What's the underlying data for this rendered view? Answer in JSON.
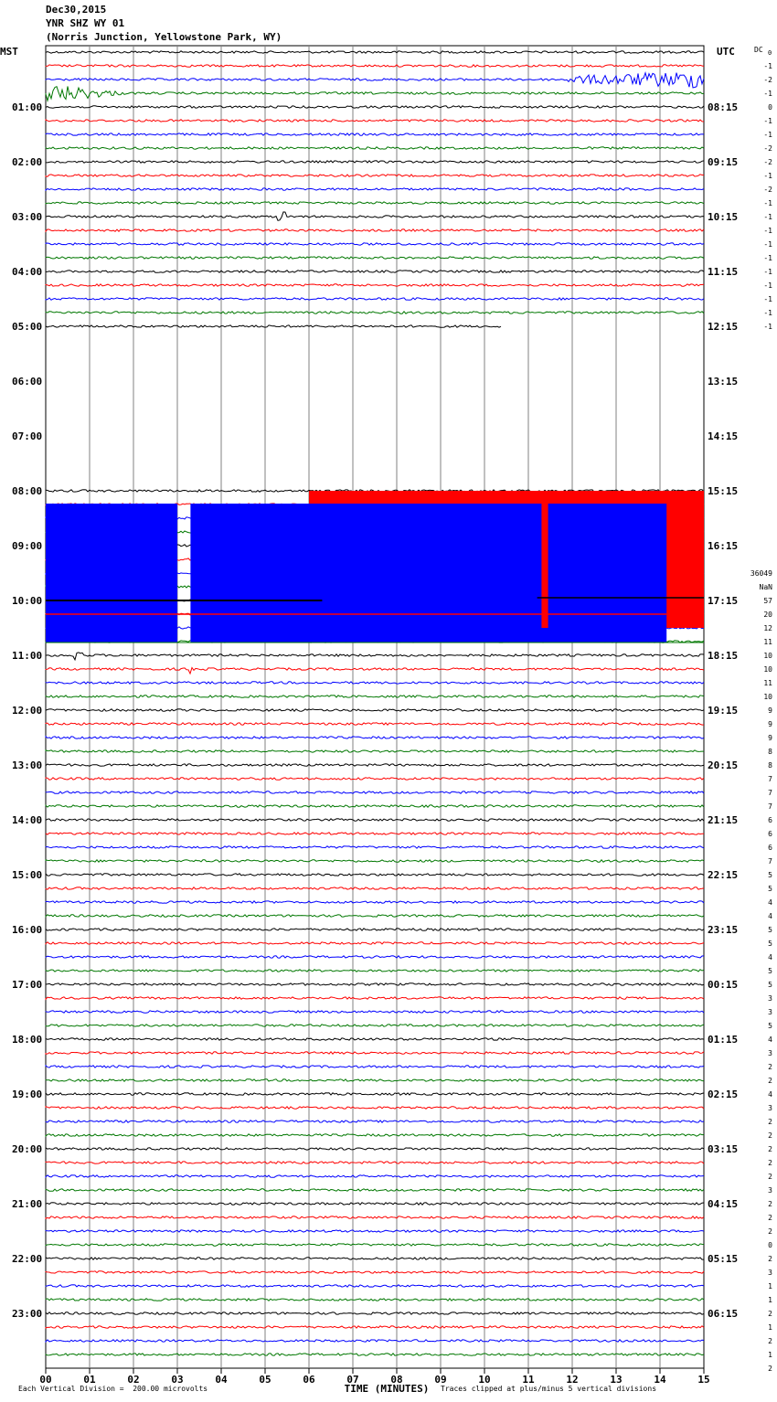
{
  "header": {
    "date": "Dec30,2015",
    "station": "YNR SHZ WY 01",
    "location": "(Norris Junction, Yellowstone Park, WY)"
  },
  "axes": {
    "left_label": "MST",
    "right_label": "UTC",
    "dc_label": "DC",
    "dc_sub": "0",
    "xlabel": "TIME (MINUTES)"
  },
  "footer": {
    "division_note": "Each Vertical Division =  200.00 microvolts",
    "clip_note": "Traces clipped at plus/minus 5 vertical divisions"
  },
  "colors": {
    "trace_cycle": [
      "#000000",
      "#ff0000",
      "#0000ff",
      "#007700"
    ],
    "grid": "#808080",
    "saturated_blue": "#0000ff",
    "saturated_red": "#ff0000"
  },
  "chart_data": {
    "type": "line",
    "title": "YNR SHZ WY 01",
    "xlabel": "TIME (MINUTES)",
    "xlim": [
      0,
      15
    ],
    "x_ticks": [
      "00",
      "01",
      "02",
      "03",
      "04",
      "05",
      "06",
      "07",
      "08",
      "09",
      "10",
      "11",
      "12",
      "13",
      "14",
      "15"
    ],
    "rows_per_hour": 4,
    "hours_mst": [
      "01:00",
      "02:00",
      "03:00",
      "04:00",
      "05:00",
      "06:00",
      "07:00",
      "08:00",
      "09:00",
      "10:00",
      "11:00",
      "12:00",
      "13:00",
      "14:00",
      "15:00",
      "16:00",
      "17:00",
      "18:00",
      "19:00",
      "20:00",
      "21:00",
      "22:00",
      "23:00"
    ],
    "hours_utc": [
      "08:15",
      "09:15",
      "10:15",
      "11:15",
      "12:15",
      "13:15",
      "14:15",
      "15:15",
      "16:15",
      "17:15",
      "18:15",
      "19:15",
      "20:15",
      "21:15",
      "22:15",
      "23:15",
      "00:15",
      "01:15",
      "02:15",
      "03:15",
      "04:15",
      "05:15",
      "06:15"
    ],
    "dc_offsets_top": [
      "-1",
      "-2",
      "-1",
      "0",
      "-1",
      "-1",
      "-2",
      "-2",
      "-1",
      "-2",
      "-1",
      "-1",
      "-1",
      "-1",
      "-1",
      "-1",
      "-1",
      "-1",
      "-1",
      "-1"
    ],
    "dc_offsets_bottom": [
      "36049",
      "NaN",
      "57",
      "20",
      "12",
      "11",
      "10",
      "10",
      "11",
      "10",
      "9",
      "9",
      "9",
      "8",
      "8",
      "7",
      "7",
      "7",
      "6",
      "6",
      "6",
      "7",
      "5",
      "5",
      "4",
      "4",
      "5",
      "5",
      "4",
      "5",
      "5",
      "3",
      "3",
      "5",
      "4",
      "3",
      "2",
      "2",
      "4",
      "3",
      "2",
      "2",
      "2",
      "2",
      "2",
      "3",
      "2",
      "2",
      "2",
      "0",
      "2",
      "3",
      "1",
      "1",
      "2",
      "1",
      "2",
      "1",
      "2"
    ],
    "data_gap": {
      "start_trace_row": 20,
      "end_trace_row": 31
    }
  }
}
